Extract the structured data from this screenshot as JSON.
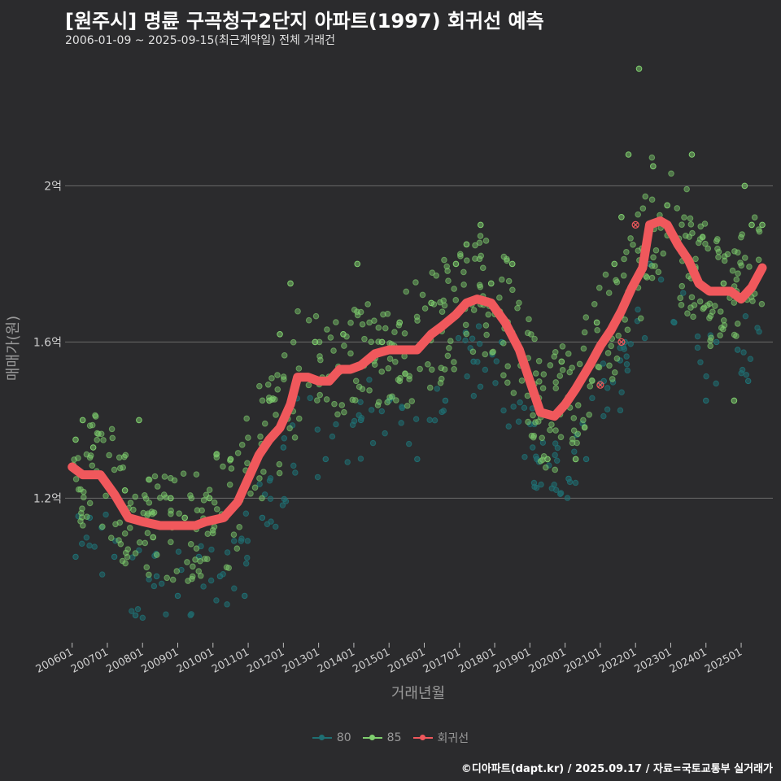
{
  "header": {
    "title": "[원주시] 명륜 구곡청구2단지 아파트(1997) 회귀선 예측",
    "subtitle": "2006-01-09 ~ 2025-09-15(최근계약일) 전체 거래건"
  },
  "credit": "©디아파트(dapt.kr) / 2025.09.17 / 자료=국토교통부 실거래가",
  "colors": {
    "background": "#2b2b2d",
    "grid": "#6a6a6a",
    "s80": "#1f6f73",
    "s85": "#7fcf6e",
    "regression": "#f0585c"
  },
  "chart_data": {
    "type": "scatter",
    "title": "[원주시] 명륜 구곡청구2단지 아파트(1997) 회귀선 예측",
    "xlabel": "거래년월",
    "ylabel": "매매가(원)",
    "x_ticks": [
      "200601",
      "200701",
      "200801",
      "200901",
      "201001",
      "201101",
      "201201",
      "201301",
      "201401",
      "201501",
      "201601",
      "201701",
      "201801",
      "201901",
      "202001",
      "202101",
      "202201",
      "202301",
      "202401",
      "202501"
    ],
    "y_ticks": [
      {
        "value": 1.2,
        "label": "1.2억"
      },
      {
        "value": 1.6,
        "label": "1.6억"
      },
      {
        "value": 2.0,
        "label": "2억"
      }
    ],
    "xlim": [
      2005.8,
      2025.9
    ],
    "ylim": [
      0.83,
      2.33
    ],
    "legend": [
      {
        "key": "s80",
        "label": "80",
        "kind": "point-line"
      },
      {
        "key": "s85",
        "label": "85",
        "kind": "point-line"
      },
      {
        "key": "regression",
        "label": "회귀선",
        "kind": "line"
      }
    ],
    "series_85_anchor": {
      "name": "85",
      "points": [
        [
          2006.1,
          1.35
        ],
        [
          2006.3,
          1.4
        ],
        [
          2006.6,
          1.33
        ],
        [
          2007.5,
          1.22
        ],
        [
          2007.9,
          1.4
        ],
        [
          2008.3,
          1.1
        ],
        [
          2008.8,
          1.2
        ],
        [
          2009.2,
          1.15
        ],
        [
          2009.9,
          1.2
        ],
        [
          2010.5,
          1.3
        ],
        [
          2011.6,
          1.45
        ],
        [
          2011.9,
          1.62
        ],
        [
          2012.2,
          1.75
        ],
        [
          2012.9,
          1.6
        ],
        [
          2013.7,
          1.62
        ],
        [
          2014.1,
          1.8
        ],
        [
          2014.8,
          1.6
        ],
        [
          2015.3,
          1.65
        ],
        [
          2016.2,
          1.7
        ],
        [
          2016.9,
          1.8
        ],
        [
          2017.2,
          1.85
        ],
        [
          2017.6,
          1.9
        ],
        [
          2017.9,
          1.75
        ],
        [
          2018.5,
          1.8
        ],
        [
          2019.5,
          1.3
        ],
        [
          2019.9,
          1.55
        ],
        [
          2020.3,
          1.3
        ],
        [
          2020.9,
          1.65
        ],
        [
          2021.4,
          1.8
        ],
        [
          2021.6,
          1.92
        ],
        [
          2021.8,
          2.08
        ],
        [
          2022.1,
          2.3
        ],
        [
          2022.5,
          2.05
        ],
        [
          2022.9,
          1.95
        ],
        [
          2023.3,
          1.83
        ],
        [
          2023.6,
          2.08
        ],
        [
          2024.5,
          1.75
        ],
        [
          2024.8,
          1.45
        ],
        [
          2025.1,
          2.0
        ],
        [
          2025.3,
          1.9
        ],
        [
          2025.6,
          1.9
        ]
      ]
    },
    "series_80_anchor": {
      "name": "80",
      "points": [
        [
          2006.1,
          1.05
        ],
        [
          2006.5,
          1.15
        ],
        [
          2007.2,
          1.05
        ],
        [
          2007.8,
          0.9
        ],
        [
          2008.4,
          1.0
        ],
        [
          2009.0,
          0.95
        ],
        [
          2009.6,
          1.05
        ],
        [
          2010.2,
          1.0
        ],
        [
          2010.9,
          0.95
        ],
        [
          2011.4,
          1.15
        ],
        [
          2012.0,
          1.33
        ],
        [
          2013.2,
          1.3
        ],
        [
          2014.2,
          1.4
        ],
        [
          2015.0,
          1.45
        ],
        [
          2015.8,
          1.3
        ],
        [
          2016.6,
          1.45
        ],
        [
          2017.4,
          1.55
        ],
        [
          2018.2,
          1.6
        ],
        [
          2019.2,
          1.3
        ],
        [
          2020.1,
          1.25
        ],
        [
          2020.6,
          1.3
        ],
        [
          2021.1,
          1.5
        ],
        [
          2021.7,
          1.6
        ],
        [
          2022.4,
          1.8
        ],
        [
          2023.1,
          1.65
        ],
        [
          2024.0,
          1.45
        ],
        [
          2024.3,
          1.6
        ],
        [
          2024.9,
          1.58
        ],
        [
          2025.2,
          1.5
        ]
      ]
    },
    "regression": {
      "name": "회귀선",
      "points": [
        [
          2006.0,
          1.28
        ],
        [
          2006.3,
          1.26
        ],
        [
          2006.8,
          1.26
        ],
        [
          2007.2,
          1.21
        ],
        [
          2007.6,
          1.15
        ],
        [
          2008.0,
          1.14
        ],
        [
          2008.5,
          1.13
        ],
        [
          2009.0,
          1.13
        ],
        [
          2009.5,
          1.13
        ],
        [
          2009.8,
          1.14
        ],
        [
          2010.3,
          1.15
        ],
        [
          2010.7,
          1.19
        ],
        [
          2011.0,
          1.25
        ],
        [
          2011.3,
          1.31
        ],
        [
          2011.6,
          1.35
        ],
        [
          2011.9,
          1.38
        ],
        [
          2012.2,
          1.44
        ],
        [
          2012.4,
          1.51
        ],
        [
          2012.7,
          1.51
        ],
        [
          2013.0,
          1.5
        ],
        [
          2013.3,
          1.5
        ],
        [
          2013.6,
          1.53
        ],
        [
          2013.9,
          1.53
        ],
        [
          2014.2,
          1.54
        ],
        [
          2014.6,
          1.57
        ],
        [
          2015.0,
          1.58
        ],
        [
          2015.4,
          1.58
        ],
        [
          2015.8,
          1.58
        ],
        [
          2016.2,
          1.62
        ],
        [
          2016.5,
          1.64
        ],
        [
          2016.9,
          1.67
        ],
        [
          2017.2,
          1.7
        ],
        [
          2017.5,
          1.71
        ],
        [
          2017.9,
          1.7
        ],
        [
          2018.3,
          1.65
        ],
        [
          2018.7,
          1.58
        ],
        [
          2019.0,
          1.5
        ],
        [
          2019.3,
          1.42
        ],
        [
          2019.7,
          1.41
        ],
        [
          2020.0,
          1.44
        ],
        [
          2020.3,
          1.48
        ],
        [
          2020.7,
          1.54
        ],
        [
          2021.0,
          1.59
        ],
        [
          2021.3,
          1.63
        ],
        [
          2021.6,
          1.68
        ],
        [
          2021.9,
          1.74
        ],
        [
          2022.2,
          1.79
        ],
        [
          2022.4,
          1.9
        ],
        [
          2022.7,
          1.91
        ],
        [
          2022.9,
          1.9
        ],
        [
          2023.2,
          1.85
        ],
        [
          2023.5,
          1.81
        ],
        [
          2023.8,
          1.75
        ],
        [
          2024.1,
          1.73
        ],
        [
          2024.4,
          1.73
        ],
        [
          2024.7,
          1.73
        ],
        [
          2025.0,
          1.71
        ],
        [
          2025.3,
          1.74
        ],
        [
          2025.6,
          1.79
        ]
      ]
    },
    "highlight_points": [
      [
        2021.0,
        1.49
      ],
      [
        2021.6,
        1.6
      ],
      [
        2022.0,
        1.9
      ]
    ]
  }
}
